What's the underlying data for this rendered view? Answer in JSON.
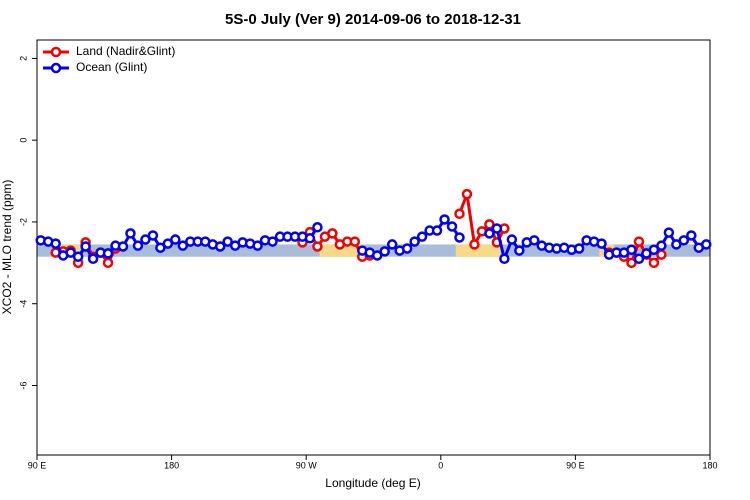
{
  "chart_data": {
    "type": "line",
    "title": "5S-0 July (Ver 9)   2014-09-06 to 2018-12-31",
    "x_label": "Longitude (deg E)",
    "y_label": "XCO2 - MLO trend (ppm)",
    "xlim": [
      90,
      540
    ],
    "ylim": [
      -7.7,
      2.45
    ],
    "xticks": [
      {
        "value": 90,
        "label": "90 E"
      },
      180,
      {
        "value": 270,
        "label": "90 W"
      },
      {
        "value": 360,
        "label": "0"
      },
      {
        "value": 450,
        "label": "90 E"
      },
      {
        "value": 540,
        "label": "180"
      }
    ],
    "yticks": [
      2,
      0,
      -2,
      -4,
      -6
    ],
    "legend": "top-left",
    "bands": [
      {
        "color": "#a9bcd9",
        "xlim": [
          90,
          540
        ],
        "ylim": [
          -2.85,
          -2.55
        ]
      },
      {
        "color": "#f7d98a",
        "xlim": [
          102,
          119
        ],
        "ylim": [
          -2.85,
          -2.55
        ]
      },
      {
        "color": "#f7d98a",
        "xlim": [
          279,
          309
        ],
        "ylim": [
          -2.85,
          -2.55
        ]
      },
      {
        "color": "#f7d98a",
        "xlim": [
          370,
          400
        ],
        "ylim": [
          -2.85,
          -2.55
        ]
      },
      {
        "color": "#f7d98a",
        "xlim": [
          466,
          476
        ],
        "ylim": [
          -2.85,
          -2.55
        ]
      }
    ],
    "x": [
      92.5,
      97.5,
      102.5,
      107.5,
      112.5,
      117.5,
      122.5,
      127.5,
      132.5,
      137.5,
      142.5,
      147.5,
      152.5,
      157.5,
      162.5,
      167.5,
      172.5,
      177.5,
      182.5,
      187.5,
      192.5,
      197.5,
      202.5,
      207.5,
      212.5,
      217.5,
      222.5,
      227.5,
      232.5,
      237.5,
      242.5,
      247.5,
      252.5,
      257.5,
      262.5,
      267.5,
      272.5,
      277.5,
      282.5,
      287.5,
      292.5,
      297.5,
      302.5,
      307.5,
      312.5,
      317.5,
      322.5,
      327.5,
      332.5,
      337.5,
      342.5,
      347.5,
      352.5,
      357.5,
      362.5,
      367.5,
      372.5,
      377.5,
      382.5,
      387.5,
      392.5,
      397.5,
      402.5,
      407.5,
      412.5,
      417.5,
      422.5,
      427.5,
      432.5,
      437.5,
      442.5,
      447.5,
      452.5,
      457.5,
      462.5,
      467.5,
      472.5,
      477.5,
      482.5,
      487.5,
      492.5,
      497.5,
      502.5,
      507.5,
      512.5,
      517.5,
      522.5,
      527.5,
      532.5,
      537.5
    ],
    "series": [
      {
        "name": "Land (Nadir&Glint)",
        "color": "#ee0000",
        "values": [
          null,
          null,
          -2.75,
          -2.72,
          -2.7,
          -3.0,
          -2.5,
          -2.85,
          -2.75,
          -3.0,
          -2.65,
          null,
          null,
          null,
          null,
          null,
          null,
          null,
          null,
          null,
          null,
          null,
          null,
          null,
          null,
          null,
          null,
          null,
          null,
          null,
          null,
          null,
          null,
          null,
          null,
          -2.5,
          -2.25,
          -2.6,
          -2.36,
          -2.28,
          -2.55,
          -2.48,
          -2.48,
          -2.85,
          -2.82,
          null,
          null,
          null,
          null,
          null,
          null,
          null,
          null,
          null,
          null,
          null,
          -1.8,
          -1.32,
          -2.55,
          -2.23,
          -2.06,
          -2.5,
          -2.16,
          null,
          null,
          null,
          null,
          null,
          null,
          null,
          null,
          null,
          null,
          null,
          null,
          null,
          -2.75,
          -2.75,
          -2.85,
          -3.0,
          -2.48,
          -2.8,
          -3.0,
          -2.8,
          null,
          null,
          null,
          null,
          null,
          null
        ]
      },
      {
        "name": "Ocean (Glint)",
        "color": "#0000ee",
        "values": [
          -2.45,
          -2.48,
          -2.53,
          -2.82,
          -2.75,
          -2.85,
          -2.6,
          -2.9,
          -2.75,
          -2.77,
          -2.58,
          -2.6,
          -2.28,
          -2.58,
          -2.43,
          -2.33,
          -2.63,
          -2.53,
          -2.43,
          -2.58,
          -2.48,
          -2.48,
          -2.48,
          -2.55,
          -2.6,
          -2.48,
          -2.58,
          -2.5,
          -2.53,
          -2.58,
          -2.45,
          -2.48,
          -2.36,
          -2.36,
          -2.36,
          -2.36,
          -2.4,
          -2.13,
          null,
          null,
          null,
          null,
          null,
          -2.7,
          -2.75,
          -2.82,
          -2.72,
          -2.55,
          -2.7,
          -2.65,
          -2.48,
          -2.36,
          -2.21,
          -2.21,
          -1.94,
          -2.11,
          -2.38,
          null,
          null,
          null,
          -2.28,
          -2.16,
          -2.9,
          -2.43,
          -2.7,
          -2.5,
          -2.45,
          -2.58,
          -2.63,
          -2.65,
          -2.63,
          -2.68,
          -2.65,
          -2.45,
          -2.48,
          -2.53,
          -2.8,
          -2.75,
          -2.75,
          -2.68,
          -2.9,
          -2.77,
          -2.68,
          -2.58,
          -2.26,
          -2.55,
          -2.45,
          -2.33,
          -2.63,
          -2.55
        ]
      }
    ]
  }
}
